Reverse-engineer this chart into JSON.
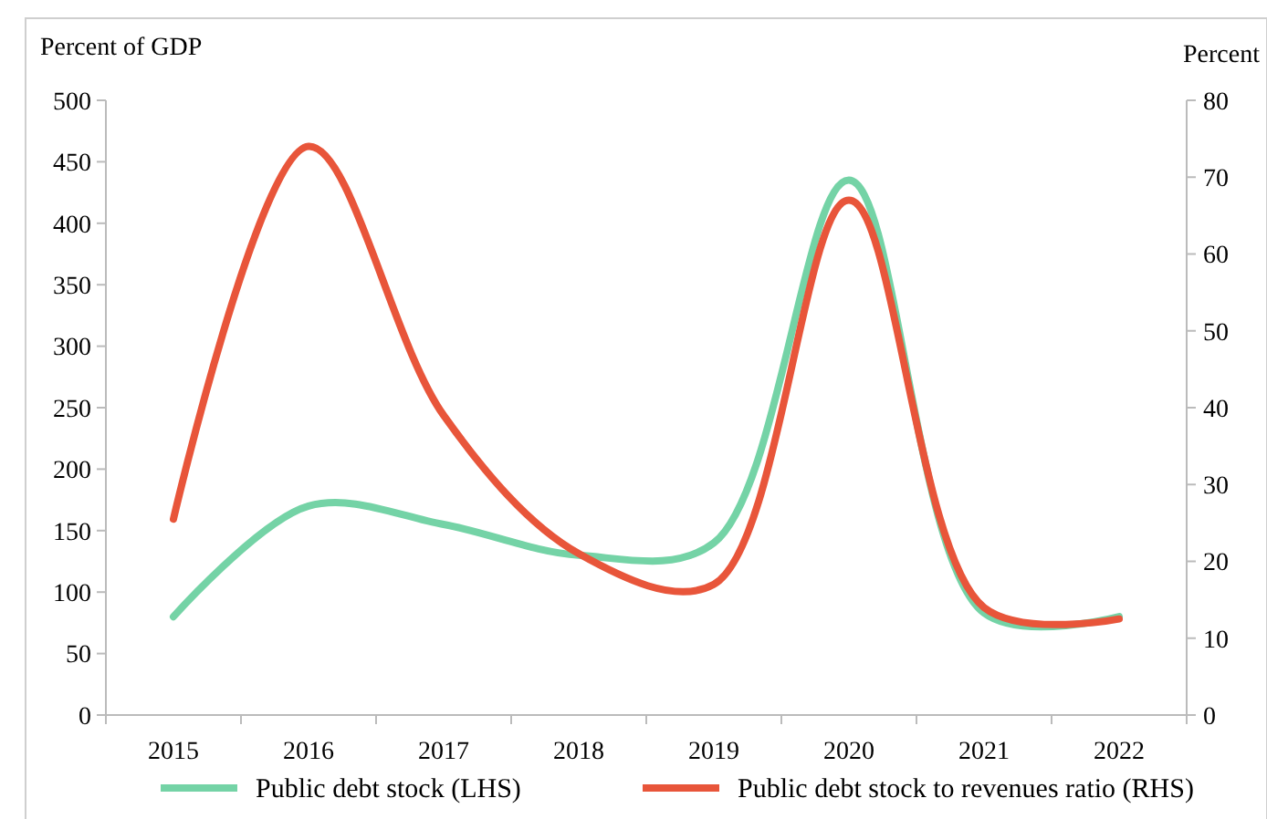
{
  "chart_data": {
    "type": "line",
    "ylabel": "Percent of GDP",
    "y2label": "Percent",
    "categories": [
      "2015",
      "2016",
      "2017",
      "2018",
      "2019",
      "2020",
      "2021",
      "2022"
    ],
    "series": [
      {
        "name": "Public debt stock (LHS)",
        "color": "#74d3a6",
        "values": [
          80,
          170,
          155,
          130,
          140,
          435,
          83,
          80
        ]
      },
      {
        "name": "Public debt stock to revenues ratio (RHS)",
        "color": "#e8553a",
        "axis": "y2",
        "values": [
          25.5,
          74,
          39,
          21,
          17,
          67,
          14,
          12.5
        ]
      }
    ],
    "ylim": [
      0,
      500
    ],
    "yticks": [
      0,
      50,
      100,
      150,
      200,
      250,
      300,
      350,
      400,
      450,
      500
    ],
    "y2lim": [
      0,
      80
    ],
    "y2ticks": [
      0,
      10,
      20,
      30,
      40,
      50,
      60,
      70,
      80
    ],
    "legend": "bottom",
    "grid": false,
    "marker": "none",
    "line_style": "solid"
  }
}
